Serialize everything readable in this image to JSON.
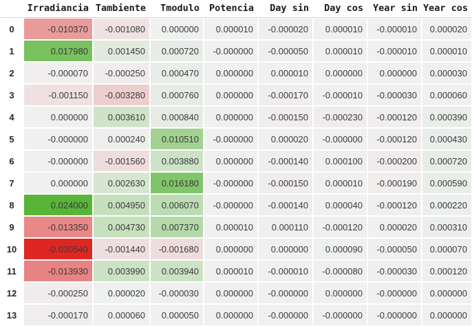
{
  "page": {
    "background": "#ffffff"
  },
  "chart_data": {
    "type": "table",
    "style": "diverging-heatmap",
    "columns": [
      "Irradiancia",
      "Tambiente",
      "Tmodulo",
      "Potencia",
      "Day sin",
      "Day cos",
      "Year sin",
      "Year cos"
    ],
    "index": [
      "0",
      "1",
      "2",
      "3",
      "4",
      "5",
      "6",
      "7",
      "8",
      "9",
      "10",
      "11",
      "12",
      "13"
    ],
    "rows": [
      [
        "-0.010370",
        "-0.001080",
        "0.000000",
        "0.000010",
        "-0.000020",
        "0.000010",
        "-0.000010",
        "0.000020"
      ],
      [
        "0.017980",
        "0.001450",
        "0.000720",
        "-0.000000",
        "-0.000050",
        "0.000010",
        "-0.000010",
        "0.000010"
      ],
      [
        "-0.000070",
        "-0.000250",
        "0.000470",
        "0.000000",
        "0.000010",
        "0.000000",
        "0.000000",
        "0.000030"
      ],
      [
        "-0.001150",
        "-0.003280",
        "0.000760",
        "0.000000",
        "-0.000170",
        "-0.000010",
        "-0.000030",
        "0.000060"
      ],
      [
        "0.000000",
        "0.003610",
        "0.000840",
        "0.000000",
        "-0.000150",
        "-0.000230",
        "-0.000120",
        "0.000390"
      ],
      [
        "-0.000000",
        "0.000240",
        "0.010510",
        "-0.000000",
        "0.000020",
        "-0.000000",
        "-0.000120",
        "0.000430"
      ],
      [
        "-0.000000",
        "-0.001560",
        "0.003880",
        "0.000000",
        "-0.000140",
        "0.000100",
        "-0.000200",
        "0.000720"
      ],
      [
        "0.000000",
        "0.002630",
        "0.016180",
        "-0.000000",
        "-0.000150",
        "0.000010",
        "-0.000190",
        "0.000590"
      ],
      [
        "0.024000",
        "0.004950",
        "0.006070",
        "-0.000000",
        "-0.000140",
        "0.000040",
        "-0.000120",
        "0.000220"
      ],
      [
        "-0.013350",
        "0.004730",
        "0.007370",
        "0.000010",
        "0.000110",
        "-0.000120",
        "0.000020",
        "0.000310"
      ],
      [
        "-0.030540",
        "-0.001440",
        "-0.001680",
        "0.000000",
        "0.000000",
        "0.000090",
        "-0.000050",
        "0.000070"
      ],
      [
        "-0.013930",
        "0.003990",
        "0.003940",
        "0.000010",
        "-0.000010",
        "-0.000080",
        "-0.000030",
        "0.000120"
      ],
      [
        "-0.000250",
        "0.000020",
        "-0.000030",
        "0.000000",
        "-0.000000",
        "0.000000",
        "-0.000000",
        "0.000000"
      ],
      [
        "-0.000170",
        "0.000060",
        "0.000050",
        "0.000000",
        "-0.000000",
        "-0.000000",
        "-0.000000",
        "0.000000"
      ]
    ],
    "colormap": {
      "neutral": "#f0f0f1",
      "negative_max": "#e02623",
      "positive_max": "#38a810",
      "max_abs": 0.03054,
      "gamma": 0.8
    }
  }
}
